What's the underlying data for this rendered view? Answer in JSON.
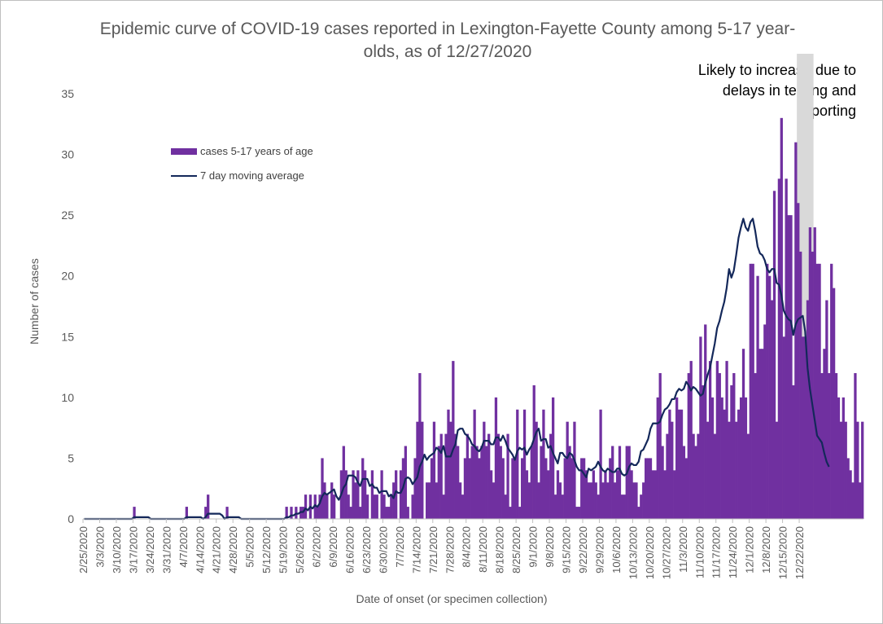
{
  "colors": {
    "bar": "#7030a0",
    "line": "#14285a",
    "shade": "#d9d9d9",
    "axis_text": "#595959",
    "axis_line": "#bfbfbf"
  },
  "chart_data": {
    "type": "bar",
    "title": "Epidemic curve of COVID-19 cases reported in Lexington-Fayette County among 5-17 year-olds, as of 12/27/2020",
    "xlabel": "Date of onset (or specimen collection)",
    "ylabel": "Number of cases",
    "ylim": [
      0,
      35
    ],
    "yticks": [
      0,
      5,
      10,
      15,
      20,
      25,
      30,
      35
    ],
    "grid": false,
    "legend_position": "top-left",
    "annotation": "Likely to increase due to delays in testing and reporting",
    "shaded_period": [
      "12/21/2020",
      "12/27/2020"
    ],
    "x_start": "2/25/2020",
    "x_ticks": [
      "2/25/2020",
      "3/3/2020",
      "3/10/2020",
      "3/17/2020",
      "3/24/2020",
      "3/31/2020",
      "4/7/2020",
      "4/14/2020",
      "4/21/2020",
      "4/28/2020",
      "5/5/2020",
      "5/12/2020",
      "5/19/2020",
      "5/26/2020",
      "6/2/2020",
      "6/9/2020",
      "6/16/2020",
      "6/23/2020",
      "6/30/2020",
      "7/7/2020",
      "7/14/2020",
      "7/21/2020",
      "7/28/2020",
      "8/4/2020",
      "8/11/2020",
      "8/18/2020",
      "8/25/2020",
      "9/1/2020",
      "9/8/2020",
      "9/15/2020",
      "9/22/2020",
      "9/29/2020",
      "10/6/2020",
      "10/13/2020",
      "10/20/2020",
      "10/27/2020",
      "11/3/2020",
      "11/10/2020",
      "11/17/2020",
      "11/24/2020",
      "12/1/2020",
      "12/8/2020",
      "12/15/2020",
      "12/22/2020"
    ],
    "series": [
      {
        "name": "cases 5-17 years of age",
        "type": "bar",
        "values": [
          0,
          0,
          0,
          0,
          0,
          0,
          0,
          0,
          0,
          0,
          0,
          0,
          0,
          0,
          0,
          0,
          0,
          0,
          0,
          0,
          0,
          1,
          0,
          0,
          0,
          0,
          0,
          0,
          0,
          0,
          0,
          0,
          0,
          0,
          0,
          0,
          0,
          0,
          0,
          0,
          0,
          0,
          0,
          1,
          0,
          0,
          0,
          0,
          0,
          0,
          0,
          1,
          2,
          0,
          0,
          0,
          0,
          0,
          0,
          0,
          1,
          0,
          0,
          0,
          0,
          0,
          0,
          0,
          0,
          0,
          0,
          0,
          0,
          0,
          0,
          0,
          0,
          0,
          0,
          0,
          0,
          0,
          0,
          0,
          0,
          1,
          0,
          1,
          0,
          1,
          0,
          1,
          1,
          2,
          0,
          2,
          0,
          2,
          1,
          2,
          5,
          3,
          2,
          0,
          3,
          2,
          0,
          0,
          4,
          6,
          4,
          2,
          1,
          4,
          3,
          4,
          1,
          5,
          4,
          2,
          0,
          4,
          2,
          2,
          0,
          4,
          2,
          1,
          1,
          2,
          3,
          4,
          0,
          4,
          5,
          6,
          1,
          0,
          2,
          5,
          8,
          12,
          8,
          0,
          3,
          3,
          5,
          8,
          3,
          6,
          7,
          2,
          7,
          9,
          8,
          13,
          7,
          6,
          3,
          2,
          5,
          7,
          5,
          6,
          9,
          6,
          5,
          6,
          8,
          6,
          7,
          4,
          3,
          10,
          7,
          6,
          5,
          2,
          7,
          1,
          5,
          5,
          9,
          1,
          5,
          9,
          4,
          3,
          6,
          11,
          8,
          3,
          6,
          9,
          5,
          4,
          7,
          10,
          2,
          4,
          3,
          2,
          5,
          8,
          6,
          5,
          8,
          1,
          1,
          5,
          5,
          4,
          3,
          3,
          4,
          3,
          2,
          9,
          3,
          4,
          3,
          5,
          6,
          3,
          4,
          6,
          2,
          2,
          6,
          6,
          4,
          3,
          3,
          1,
          2,
          3,
          5,
          5,
          5,
          4,
          4,
          10,
          12,
          6,
          4,
          7,
          9,
          8,
          4,
          10,
          9,
          9,
          6,
          5,
          12,
          13,
          7,
          6,
          7,
          15,
          11,
          16,
          8,
          13,
          10,
          7,
          13,
          12,
          10,
          9,
          13,
          8,
          11,
          12,
          8,
          9,
          10,
          14,
          10,
          7,
          21,
          21,
          12,
          20,
          14,
          14,
          16,
          21,
          20,
          18,
          27,
          8,
          28,
          33,
          15,
          28,
          25,
          25,
          11,
          31,
          26,
          22,
          15,
          15,
          18,
          24,
          22,
          24,
          21,
          21,
          12,
          14,
          18,
          12,
          21,
          19,
          12,
          10,
          8,
          10,
          8,
          5,
          4,
          3,
          12,
          8,
          3,
          8
        ]
      },
      {
        "name": "7 day moving average",
        "type": "line",
        "values": [
          0,
          0,
          0,
          0,
          0,
          0,
          0,
          0,
          0,
          0,
          0,
          0,
          0,
          0,
          0,
          0,
          0,
          0,
          0,
          0,
          0,
          0.14,
          0.14,
          0.14,
          0.14,
          0.14,
          0.14,
          0.14,
          0,
          0,
          0,
          0,
          0,
          0,
          0,
          0,
          0,
          0,
          0,
          0,
          0,
          0,
          0,
          0.14,
          0.14,
          0.14,
          0.14,
          0.14,
          0.14,
          0.14,
          0,
          0.14,
          0.43,
          0.43,
          0.43,
          0.43,
          0.43,
          0.43,
          0.29,
          0,
          0.14,
          0.14,
          0.14,
          0.14,
          0.14,
          0.14,
          0,
          0,
          0,
          0,
          0,
          0,
          0,
          0,
          0,
          0,
          0,
          0,
          0,
          0,
          0,
          0,
          0,
          0,
          0,
          0.14,
          0.14,
          0.29,
          0.29,
          0.43,
          0.43,
          0.57,
          0.57,
          0.86,
          0.71,
          1,
          0.86,
          1.14,
          1,
          1.29,
          1.86,
          2.14,
          2,
          2.14,
          2.29,
          2.43,
          1.86,
          1.57,
          2,
          2.57,
          2.86,
          3.57,
          3.57,
          3.57,
          3.43,
          3,
          2.71,
          3.29,
          3.29,
          3.29,
          2.71,
          2.86,
          2.57,
          2.57,
          2.14,
          2.29,
          2.29,
          2.29,
          1.86,
          2,
          1.71,
          2.29,
          2.14,
          2.14,
          2.57,
          3.29,
          3.43,
          3.29,
          2.86,
          3.14,
          3.43,
          4.29,
          4.71,
          5.29,
          4.86,
          5.14,
          5.29,
          5.43,
          5.86,
          5.71,
          5.43,
          6,
          5.14,
          5.14,
          5.14,
          5.71,
          6.14,
          7.29,
          7.43,
          7.43,
          7,
          6.86,
          6.57,
          6.14,
          6,
          5.71,
          5.57,
          5.86,
          6.43,
          6.43,
          6.43,
          6.14,
          6.14,
          6.71,
          6.71,
          6.43,
          6.86,
          6.43,
          5.86,
          5.57,
          5.29,
          4.86,
          5.57,
          5.86,
          5.71,
          5.86,
          5.29,
          5.71,
          6,
          6.57,
          7.14,
          7.43,
          6.43,
          6.57,
          6.57,
          5.86,
          6,
          5.43,
          5,
          4.57,
          5.43,
          5.43,
          5.14,
          5,
          5.43,
          5.29,
          4.86,
          4.29,
          4,
          4,
          3.71,
          3.43,
          4.14,
          4,
          4.14,
          4.29,
          4.71,
          4.29,
          4,
          3.86,
          4.14,
          4,
          3.86,
          3.86,
          4.14,
          4.14,
          3.71,
          3.57,
          3.71,
          4.29,
          4.57,
          4.43,
          4.43,
          4.71,
          5.57,
          5.71,
          6.14,
          6.57,
          7.43,
          7.86,
          7.86,
          7.86,
          8,
          8.57,
          9,
          9.14,
          9.43,
          9.86,
          9.86,
          10.43,
          10.71,
          10.57,
          10.71,
          11.29,
          11,
          10.57,
          10.86,
          10.71,
          10.43,
          10.14,
          10.29,
          11.14,
          11.86,
          12.43,
          13.43,
          14.43,
          15.71,
          16.29,
          17.14,
          17.86,
          19,
          20.57,
          19.86,
          20.43,
          21.71,
          23.14,
          24,
          24.71,
          24,
          23.71,
          24.43,
          24.71,
          23.71,
          22.43,
          21.86,
          21.71,
          21.29,
          20.57,
          20.29,
          20.57,
          20.57,
          19.43,
          19.29,
          18.43,
          17.14,
          16.71,
          16.43,
          16.29,
          15.14,
          16,
          16.43,
          16.57,
          16.71,
          15.43,
          12.43,
          10.71,
          9.43,
          8.14,
          6.86,
          6.57,
          6.29,
          5.43,
          4.71,
          4.29
        ]
      }
    ]
  },
  "legend": {
    "bars_label": "cases 5-17 years of age",
    "line_label": "7 day moving average"
  }
}
